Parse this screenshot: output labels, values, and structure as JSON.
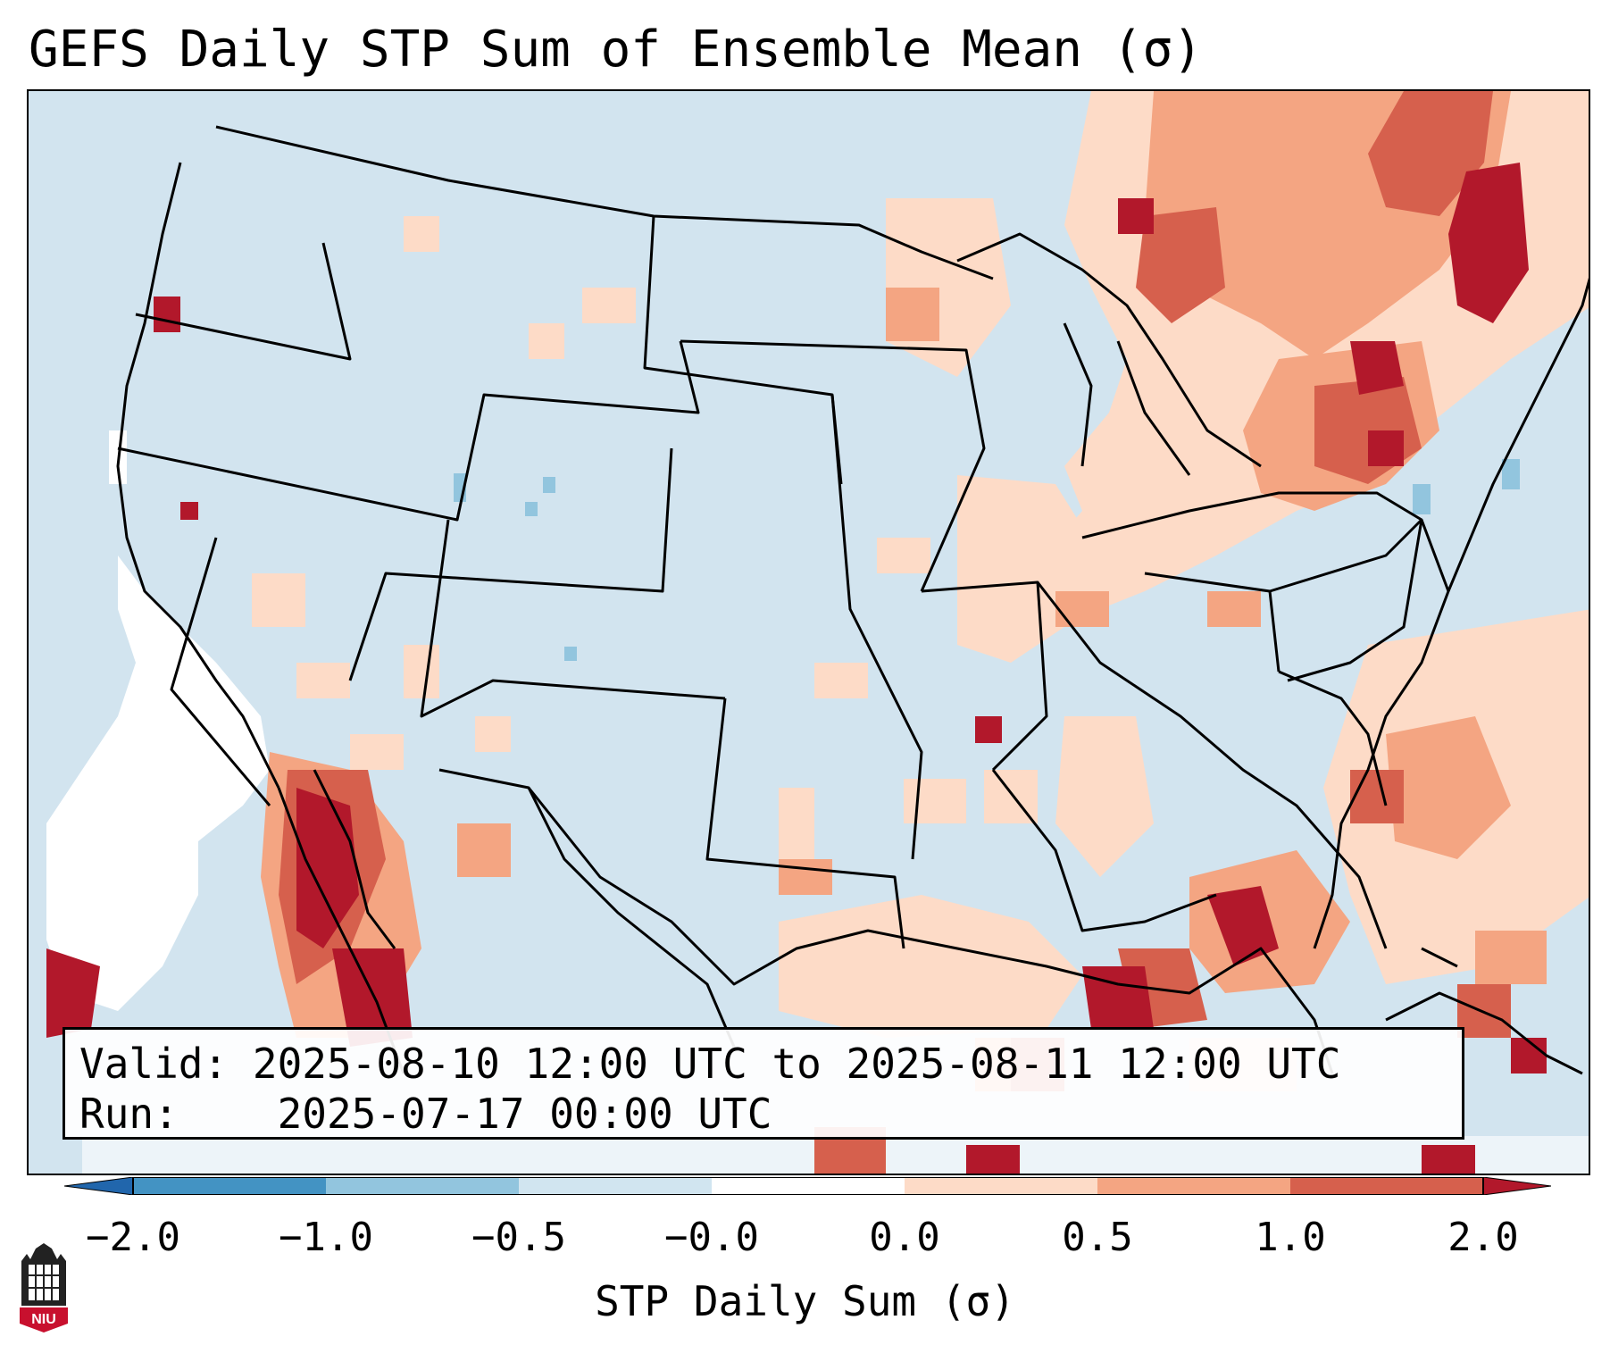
{
  "title": "GEFS Daily STP Sum of Ensemble Mean (σ)",
  "info": {
    "valid_label": "Valid:",
    "valid_value": "2025-08-10 12:00 UTC to 2025-08-11 12:00 UTC",
    "run_label": "Run:",
    "run_value": "2025-07-17 00:00 UTC"
  },
  "colorbar": {
    "label": "STP Daily Sum (σ)",
    "ticks": [
      "−2.0",
      "−1.0",
      "−0.5",
      "−0.0",
      "0.0",
      "0.5",
      "1.0",
      "2.0"
    ],
    "bins": [
      {
        "range": "< -2.0",
        "color": "#2166ac"
      },
      {
        "range": "-2.0 to -1.0",
        "color": "#4393c3"
      },
      {
        "range": "-1.0 to -0.5",
        "color": "#92c5de"
      },
      {
        "range": "-0.5 to -0.0",
        "color": "#d1e5f0"
      },
      {
        "range": "-0.0 to 0.0",
        "color": "#ffffff"
      },
      {
        "range": "0.0 to 0.5",
        "color": "#fddbc7"
      },
      {
        "range": "0.5 to 1.0",
        "color": "#f4a582"
      },
      {
        "range": "1.0 to 2.0",
        "color": "#d6604d"
      },
      {
        "range": "> 2.0",
        "color": "#b2182b"
      }
    ]
  },
  "logo": {
    "name": "niu-logo",
    "text": "NIU"
  }
}
